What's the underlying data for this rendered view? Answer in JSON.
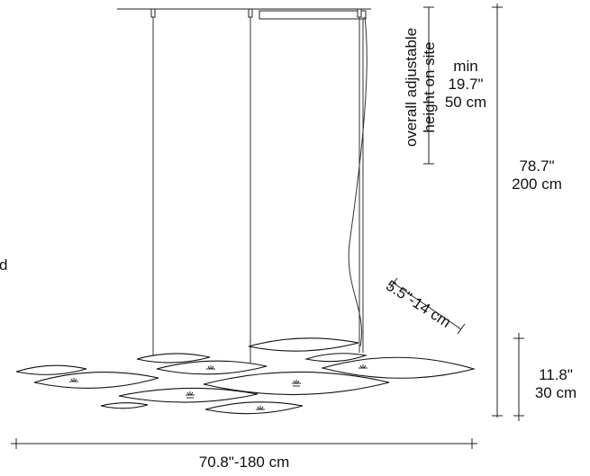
{
  "labels": {
    "adjustable_line1": "overall adjustable",
    "adjustable_line2": "height on site",
    "min_word": "min",
    "min_inch": "19.7\"",
    "min_cm": "50 cm",
    "total_inch": "78.7\"",
    "total_cm": "200 cm",
    "thickness_inch": "11.8\"",
    "thickness_cm": "30 cm",
    "leaf_size": "5.5\"-14 cm",
    "width": "70.8\"-180 cm",
    "cut_off_letter": "d"
  }
}
